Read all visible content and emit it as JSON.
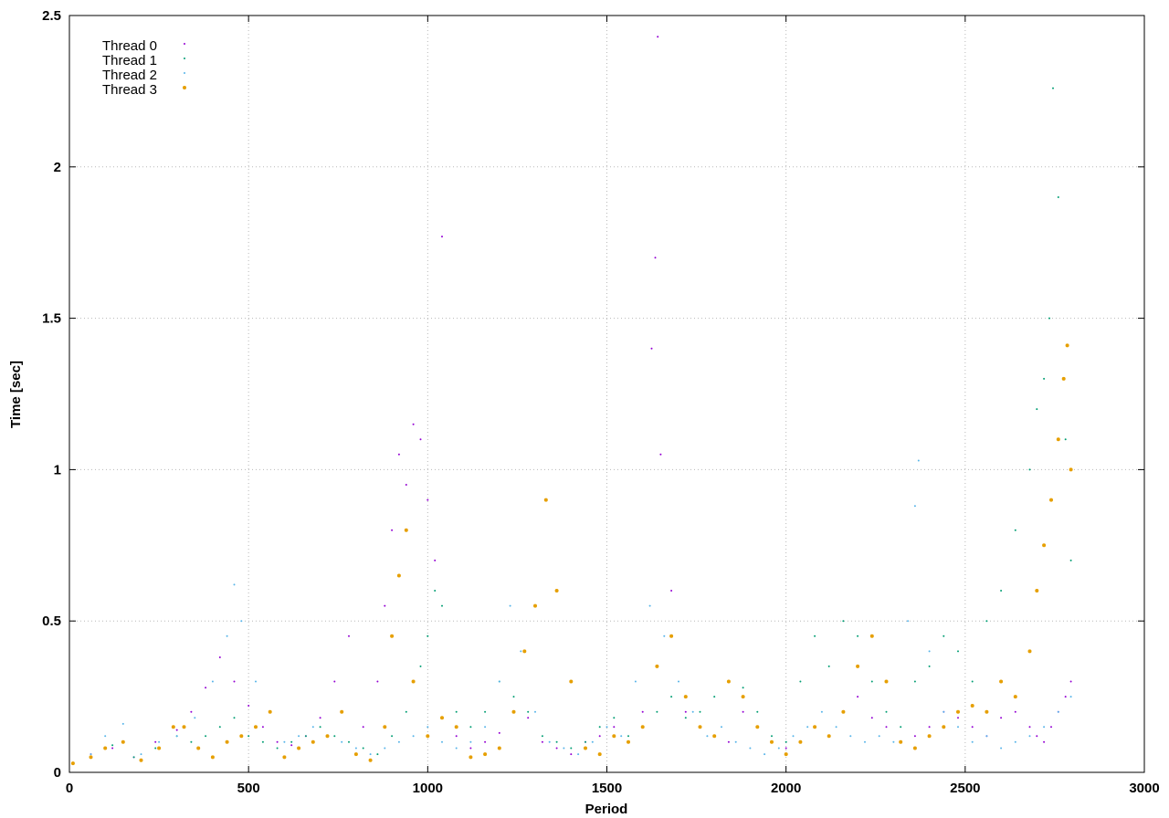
{
  "chart_data": {
    "type": "scatter",
    "title": "",
    "xlabel": "Period",
    "ylabel": "Time [sec]",
    "xlim": [
      0,
      3000
    ],
    "ylim": [
      0,
      2.5
    ],
    "xticks": [
      "0",
      "500",
      "1000",
      "1500",
      "2000",
      "2500",
      "3000"
    ],
    "yticks": [
      "0",
      "0.5",
      "1",
      "1.5",
      "2",
      "2.5"
    ],
    "grid": true,
    "legend_position": "top-left",
    "series": [
      {
        "name": "Thread 0",
        "color": "#9400d3",
        "marker": "tiny-dot",
        "x": [
          10,
          60,
          120,
          180,
          240,
          300,
          340,
          380,
          420,
          460,
          500,
          540,
          580,
          620,
          660,
          700,
          740,
          780,
          820,
          860,
          880,
          900,
          920,
          940,
          960,
          980,
          1000,
          1020,
          1040,
          1080,
          1120,
          1160,
          1200,
          1240,
          1280,
          1320,
          1360,
          1400,
          1440,
          1480,
          1520,
          1560,
          1600,
          1625,
          1635,
          1642,
          1650,
          1680,
          1720,
          1760,
          1800,
          1840,
          1880,
          1920,
          1960,
          2000,
          2040,
          2080,
          2120,
          2160,
          2200,
          2240,
          2280,
          2320,
          2360,
          2400,
          2440,
          2480,
          2520,
          2560,
          2600,
          2640,
          2680,
          2700,
          2720,
          2740,
          2760,
          2780,
          2795
        ],
        "y": [
          0.03,
          0.06,
          0.08,
          0.05,
          0.1,
          0.14,
          0.2,
          0.28,
          0.38,
          0.3,
          0.22,
          0.15,
          0.1,
          0.09,
          0.12,
          0.18,
          0.3,
          0.45,
          0.15,
          0.3,
          0.55,
          0.8,
          1.05,
          0.95,
          1.15,
          1.1,
          0.9,
          0.7,
          1.77,
          0.12,
          0.08,
          0.1,
          0.13,
          0.2,
          0.18,
          0.1,
          0.08,
          0.06,
          0.1,
          0.12,
          0.15,
          0.1,
          0.2,
          1.4,
          1.7,
          2.43,
          1.05,
          0.6,
          0.2,
          0.15,
          0.12,
          0.1,
          0.2,
          0.15,
          0.1,
          0.08,
          0.1,
          0.15,
          0.12,
          0.2,
          0.25,
          0.18,
          0.15,
          0.1,
          0.12,
          0.15,
          0.2,
          0.18,
          0.15,
          0.12,
          0.18,
          0.2,
          0.15,
          0.12,
          0.1,
          0.15,
          0.2,
          0.25,
          0.3
        ]
      },
      {
        "name": "Thread 1",
        "color": "#009e73",
        "marker": "tiny-dot",
        "x": [
          10,
          60,
          120,
          180,
          240,
          300,
          340,
          380,
          420,
          460,
          500,
          540,
          580,
          620,
          660,
          700,
          740,
          780,
          820,
          860,
          900,
          940,
          980,
          1000,
          1020,
          1040,
          1080,
          1120,
          1160,
          1200,
          1240,
          1280,
          1320,
          1360,
          1400,
          1440,
          1480,
          1520,
          1560,
          1600,
          1640,
          1680,
          1720,
          1760,
          1800,
          1840,
          1880,
          1920,
          1960,
          2000,
          2040,
          2080,
          2120,
          2160,
          2200,
          2240,
          2280,
          2320,
          2360,
          2400,
          2440,
          2480,
          2520,
          2560,
          2600,
          2640,
          2680,
          2700,
          2720,
          2735,
          2745,
          2760,
          2780,
          2795
        ],
        "y": [
          0.03,
          0.05,
          0.09,
          0.05,
          0.08,
          0.12,
          0.1,
          0.12,
          0.15,
          0.18,
          0.12,
          0.1,
          0.08,
          0.1,
          0.12,
          0.15,
          0.12,
          0.1,
          0.08,
          0.06,
          0.12,
          0.2,
          0.35,
          0.45,
          0.6,
          0.55,
          0.2,
          0.15,
          0.2,
          0.3,
          0.25,
          0.2,
          0.12,
          0.1,
          0.08,
          0.1,
          0.15,
          0.18,
          0.12,
          0.15,
          0.2,
          0.25,
          0.18,
          0.2,
          0.25,
          0.3,
          0.28,
          0.2,
          0.12,
          0.1,
          0.3,
          0.45,
          0.35,
          0.5,
          0.45,
          0.3,
          0.2,
          0.15,
          0.3,
          0.35,
          0.45,
          0.4,
          0.3,
          0.5,
          0.6,
          0.8,
          1.0,
          1.2,
          1.3,
          1.5,
          2.26,
          1.9,
          1.1,
          0.7
        ]
      },
      {
        "name": "Thread 2",
        "color": "#56b4e9",
        "marker": "tiny-dot",
        "x": [
          10,
          60,
          100,
          150,
          200,
          250,
          300,
          350,
          400,
          440,
          460,
          480,
          520,
          560,
          600,
          640,
          680,
          720,
          760,
          800,
          840,
          880,
          920,
          960,
          1000,
          1040,
          1080,
          1120,
          1160,
          1200,
          1230,
          1260,
          1300,
          1340,
          1380,
          1420,
          1460,
          1500,
          1540,
          1580,
          1620,
          1660,
          1700,
          1740,
          1780,
          1820,
          1860,
          1900,
          1940,
          1980,
          2020,
          2060,
          2100,
          2140,
          2180,
          2220,
          2260,
          2300,
          2340,
          2360,
          2370,
          2400,
          2440,
          2480,
          2520,
          2560,
          2600,
          2640,
          2680,
          2720,
          2760,
          2795
        ],
        "y": [
          0.03,
          0.06,
          0.12,
          0.16,
          0.06,
          0.1,
          0.12,
          0.18,
          0.3,
          0.45,
          0.62,
          0.5,
          0.3,
          0.2,
          0.1,
          0.12,
          0.15,
          0.12,
          0.1,
          0.08,
          0.06,
          0.08,
          0.1,
          0.12,
          0.15,
          0.1,
          0.08,
          0.1,
          0.15,
          0.3,
          0.55,
          0.4,
          0.2,
          0.1,
          0.08,
          0.06,
          0.1,
          0.15,
          0.12,
          0.3,
          0.55,
          0.45,
          0.3,
          0.2,
          0.12,
          0.15,
          0.1,
          0.08,
          0.06,
          0.08,
          0.12,
          0.15,
          0.2,
          0.15,
          0.12,
          0.1,
          0.12,
          0.1,
          0.5,
          0.88,
          1.03,
          0.4,
          0.2,
          0.15,
          0.1,
          0.12,
          0.08,
          0.1,
          0.12,
          0.15,
          0.2,
          0.25
        ]
      },
      {
        "name": "Thread 3",
        "color": "#e69f00",
        "marker": "small-dot",
        "x": [
          10,
          60,
          100,
          150,
          200,
          250,
          290,
          320,
          360,
          400,
          440,
          480,
          520,
          560,
          600,
          640,
          680,
          720,
          760,
          800,
          840,
          880,
          900,
          920,
          940,
          960,
          1000,
          1040,
          1080,
          1120,
          1160,
          1200,
          1240,
          1270,
          1300,
          1330,
          1360,
          1400,
          1440,
          1480,
          1520,
          1560,
          1600,
          1640,
          1680,
          1720,
          1760,
          1800,
          1840,
          1880,
          1920,
          1960,
          2000,
          2040,
          2080,
          2120,
          2160,
          2200,
          2240,
          2280,
          2320,
          2360,
          2400,
          2440,
          2480,
          2520,
          2560,
          2600,
          2640,
          2680,
          2700,
          2720,
          2740,
          2760,
          2775,
          2785,
          2795
        ],
        "y": [
          0.03,
          0.05,
          0.08,
          0.1,
          0.04,
          0.08,
          0.15,
          0.15,
          0.08,
          0.05,
          0.1,
          0.12,
          0.15,
          0.2,
          0.05,
          0.08,
          0.1,
          0.12,
          0.2,
          0.06,
          0.04,
          0.15,
          0.45,
          0.65,
          0.8,
          0.3,
          0.12,
          0.18,
          0.15,
          0.05,
          0.06,
          0.08,
          0.2,
          0.4,
          0.55,
          0.9,
          0.6,
          0.3,
          0.08,
          0.06,
          0.12,
          0.1,
          0.15,
          0.35,
          0.45,
          0.25,
          0.15,
          0.12,
          0.3,
          0.25,
          0.15,
          0.1,
          0.06,
          0.1,
          0.15,
          0.12,
          0.2,
          0.35,
          0.45,
          0.3,
          0.1,
          0.08,
          0.12,
          0.15,
          0.2,
          0.22,
          0.2,
          0.3,
          0.25,
          0.4,
          0.6,
          0.75,
          0.9,
          1.1,
          1.3,
          1.41,
          1.0
        ]
      }
    ]
  }
}
